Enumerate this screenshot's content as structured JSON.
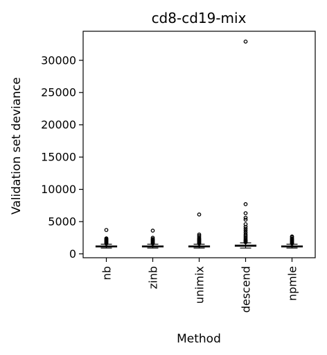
{
  "chart_data": {
    "type": "box",
    "title": "cd8-cd19-mix",
    "xlabel": "Method",
    "ylabel": "Validation set deviance",
    "categories": [
      "nb",
      "zinb",
      "unimix",
      "descend",
      "npmle"
    ],
    "ylim": [
      -600,
      34500
    ],
    "yticks": [
      0,
      5000,
      10000,
      15000,
      20000,
      25000,
      30000
    ],
    "grid": false,
    "series": [
      {
        "category": "nb",
        "q1": 1080,
        "median": 1150,
        "q3": 1230,
        "whisker_low": 900,
        "whisker_high": 1500,
        "outliers": [
          1600,
          1700,
          1800,
          1900,
          2000,
          2100,
          2200,
          2300,
          2400,
          3700
        ]
      },
      {
        "category": "zinb",
        "q1": 1080,
        "median": 1150,
        "q3": 1230,
        "whisker_low": 900,
        "whisker_high": 1500,
        "outliers": [
          1600,
          1700,
          1800,
          1900,
          2000,
          2100,
          2200,
          2300,
          2500,
          3600
        ]
      },
      {
        "category": "unimix",
        "q1": 1080,
        "median": 1150,
        "q3": 1230,
        "whisker_low": 900,
        "whisker_high": 1500,
        "outliers": [
          1600,
          1700,
          1800,
          1900,
          2000,
          2100,
          2200,
          2300,
          2400,
          2600,
          2800,
          3000,
          6100
        ]
      },
      {
        "category": "descend",
        "q1": 1180,
        "median": 1250,
        "q3": 1350,
        "whisker_low": 900,
        "whisker_high": 1700,
        "outliers": [
          1800,
          1900,
          2000,
          2100,
          2200,
          2400,
          2600,
          2800,
          3000,
          3300,
          3600,
          3900,
          4200,
          4600,
          5300,
          5600,
          6300,
          7700,
          32900
        ]
      },
      {
        "category": "npmle",
        "q1": 1080,
        "median": 1150,
        "q3": 1230,
        "whisker_low": 900,
        "whisker_high": 1500,
        "outliers": [
          1600,
          1700,
          1800,
          1900,
          2000,
          2100,
          2200,
          2300,
          2400,
          2600,
          2700
        ]
      }
    ]
  }
}
